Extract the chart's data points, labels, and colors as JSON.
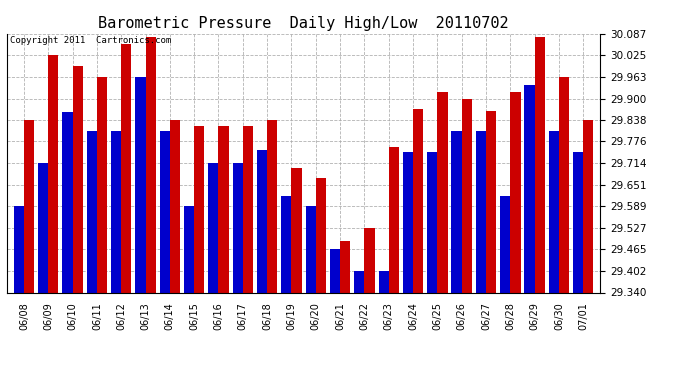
{
  "title": "Barometric Pressure  Daily High/Low  20110702",
  "copyright": "Copyright 2011  Cartronics.com",
  "ylim": [
    29.34,
    30.087
  ],
  "yticks": [
    29.34,
    29.402,
    29.465,
    29.527,
    29.589,
    29.651,
    29.714,
    29.776,
    29.838,
    29.9,
    29.963,
    30.025,
    30.087
  ],
  "dates": [
    "06/08",
    "06/09",
    "06/10",
    "06/11",
    "06/12",
    "06/13",
    "06/14",
    "06/15",
    "06/16",
    "06/17",
    "06/18",
    "06/19",
    "06/20",
    "06/21",
    "06/22",
    "06/23",
    "06/24",
    "06/25",
    "06/26",
    "06/27",
    "06/28",
    "06/29",
    "06/30",
    "07/01"
  ],
  "highs": [
    29.838,
    30.025,
    29.994,
    29.963,
    30.056,
    30.077,
    29.838,
    29.82,
    29.82,
    29.82,
    29.838,
    29.7,
    29.67,
    29.49,
    29.527,
    29.76,
    29.87,
    29.92,
    29.9,
    29.863,
    29.92,
    30.077,
    29.963,
    29.838
  ],
  "lows": [
    29.59,
    29.714,
    29.862,
    29.807,
    29.807,
    29.963,
    29.807,
    29.59,
    29.714,
    29.714,
    29.75,
    29.62,
    29.59,
    29.465,
    29.402,
    29.402,
    29.745,
    29.745,
    29.807,
    29.807,
    29.62,
    29.94,
    29.807,
    29.745
  ],
  "bar_color_high": "#cc0000",
  "bar_color_low": "#0000cc",
  "bg_color": "#ffffff",
  "grid_color": "#aaaaaa",
  "title_fontsize": 11,
  "bar_width": 0.42
}
